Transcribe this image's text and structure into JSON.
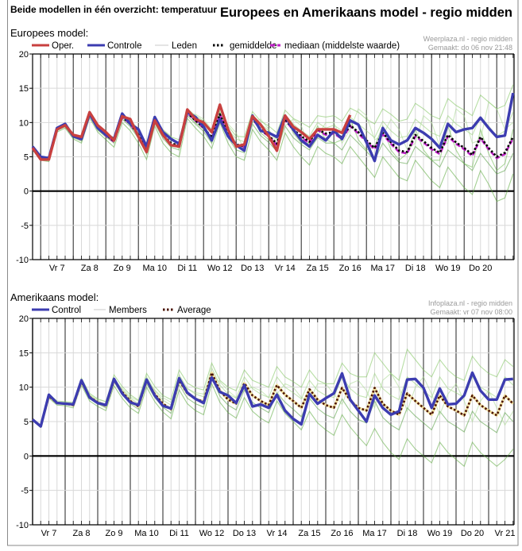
{
  "header": {
    "left_title": "Beide modellen in één overzicht: temperatuur",
    "right_title": "Europees en Amerikaans model - regio midden"
  },
  "chart_data": [
    {
      "type": "line",
      "label": "Europees model:",
      "credit_1": "Weerplaza.nl - regio midden",
      "credit_2": "Gemaakt: do 06 nov 21:48",
      "x_start": "do 6 nov 18:00",
      "step_hours": 6,
      "xtick_labels": [
        "Vr 7",
        "Za 8",
        "Zo 9",
        "Ma 10",
        "Di 11",
        "Wo 12",
        "Do 13",
        "Vr 14",
        "Za 15",
        "Zo 16",
        "Ma 17",
        "Di 18",
        "Wo 19",
        "Do 20"
      ],
      "ylim": [
        -10,
        20
      ],
      "yticks": [
        20,
        15,
        10,
        5,
        0,
        -5,
        -10
      ],
      "grid": true,
      "legend_placement": "top-left",
      "legend": [
        {
          "name": "Oper.",
          "color": "#c8403f",
          "style": "solid"
        },
        {
          "name": "Controle",
          "color": "#3c3cb0",
          "style": "solid"
        },
        {
          "name": "Leden",
          "color": "#b8d8b0",
          "style": "thin"
        },
        {
          "name": "gemiddelde",
          "color": "#000000",
          "style": "dotted"
        },
        {
          "name": "mediaan (middelste waarde)",
          "color": "#c020c8",
          "style": "dashed"
        }
      ],
      "members": [
        [
          6.5,
          5.0,
          5.0,
          9.3,
          9.8,
          8.3,
          8.0,
          11.6,
          9.6,
          8.5,
          7.8,
          11.3,
          10.2,
          8.8,
          6.8,
          10.8,
          8.9,
          7.9,
          7.5,
          12.0,
          11.0,
          10.2,
          8.9,
          12.0,
          9.5,
          8.0,
          7.9,
          11.6,
          10.2,
          9.5,
          8.5,
          11.8,
          10.6,
          10.0,
          9.3,
          11.0,
          10.8,
          11.0,
          10.2,
          12.1,
          11.5,
          10.5,
          9.8,
          12.0,
          11.2,
          10.2,
          10.5,
          12.8,
          12.0,
          11.0,
          10.5,
          13.5,
          12.5,
          11.8,
          11.0,
          14.0,
          13.0,
          12.0,
          12.5,
          15.5
        ],
        [
          6.0,
          4.5,
          4.3,
          8.6,
          9.2,
          7.6,
          7.0,
          10.7,
          8.6,
          7.5,
          6.4,
          10.0,
          8.8,
          7.0,
          4.6,
          9.5,
          7.0,
          5.6,
          5.0,
          10.6,
          9.2,
          8.0,
          6.2,
          10.0,
          7.0,
          5.0,
          4.5,
          9.0,
          7.2,
          6.0,
          4.5,
          8.5,
          6.5,
          5.0,
          3.8,
          6.5,
          5.5,
          5.0,
          4.0,
          6.5,
          5.0,
          3.5,
          2.0,
          5.0,
          3.5,
          2.0,
          1.5,
          4.5,
          3.0,
          1.5,
          0.5,
          3.5,
          2.0,
          0.5,
          -0.5,
          3.0,
          1.0,
          -1.5,
          -1.0,
          2.5
        ],
        [
          6.4,
          4.9,
          4.8,
          9.1,
          9.7,
          8.2,
          7.8,
          11.4,
          9.4,
          8.4,
          7.5,
          11.0,
          10.0,
          8.5,
          6.4,
          10.6,
          8.6,
          7.4,
          7.0,
          11.8,
          10.7,
          9.8,
          8.4,
          11.6,
          9.0,
          7.6,
          7.2,
          11.2,
          9.8,
          8.8,
          7.5,
          11.2,
          9.8,
          8.8,
          8.0,
          10.0,
          9.2,
          9.6,
          8.8,
          10.8,
          9.8,
          8.8,
          7.8,
          10.2,
          8.8,
          7.8,
          8.0,
          10.5,
          9.5,
          8.5,
          8.0,
          11.0,
          9.8,
          9.0,
          8.2,
          10.8,
          9.5,
          8.0,
          8.8,
          11.5
        ],
        [
          6.1,
          4.6,
          4.5,
          8.8,
          9.4,
          7.8,
          7.3,
          11.0,
          8.9,
          7.9,
          7.0,
          10.5,
          9.4,
          7.7,
          5.4,
          9.9,
          7.7,
          6.4,
          6.0,
          11.0,
          9.8,
          8.7,
          7.0,
          10.6,
          7.8,
          6.0,
          5.6,
          9.8,
          8.1,
          7.1,
          5.8,
          9.5,
          7.8,
          6.8,
          6.0,
          7.8,
          7.0,
          7.0,
          6.0,
          8.2,
          7.0,
          5.8,
          4.5,
          7.0,
          5.5,
          4.2,
          4.0,
          6.5,
          5.5,
          4.5,
          3.5,
          6.0,
          5.0,
          4.0,
          3.0,
          5.5,
          4.0,
          2.5,
          3.0,
          5.5
        ],
        [
          6.3,
          4.8,
          4.8,
          9.0,
          9.5,
          8.1,
          7.7,
          11.3,
          9.5,
          8.5,
          7.5,
          10.6,
          10.4,
          9.0,
          6.9,
          10.0,
          9.0,
          8.0,
          6.0,
          11.0,
          11.2,
          10.5,
          9.0,
          10.5,
          9.8,
          8.5,
          6.0,
          10.0,
          10.5,
          9.0,
          7.0,
          9.5,
          10.5,
          9.5,
          6.5,
          8.0,
          10.0,
          10.0,
          7.0,
          9.0,
          12.0,
          11.0,
          7.5,
          8.0,
          10.5,
          9.0,
          6.0,
          7.0,
          11.0,
          10.0,
          6.5,
          7.0,
          12.0,
          11.0,
          7.0,
          7.5,
          13.0,
          12.0,
          9.0,
          10.0
        ],
        [
          6.2,
          4.7,
          4.6,
          9.0,
          9.6,
          8.0,
          7.5,
          11.1,
          9.0,
          8.0,
          7.1,
          10.9,
          9.6,
          8.0,
          5.8,
          10.5,
          8.0,
          6.7,
          6.5,
          11.5,
          10.0,
          9.0,
          7.5,
          11.5,
          8.0,
          6.5,
          6.8,
          11.0,
          8.5,
          7.5,
          6.5,
          11.0,
          8.5,
          7.0,
          7.0,
          9.5,
          7.5,
          7.0,
          7.5,
          10.5,
          7.5,
          6.0,
          6.5,
          9.5,
          6.0,
          4.5,
          5.5,
          9.0,
          6.0,
          4.5,
          4.5,
          9.5,
          6.0,
          4.0,
          3.5,
          9.0,
          5.5,
          3.0,
          4.0,
          9.0
        ]
      ],
      "series": [
        {
          "name": "mediaan (middelste waarde)",
          "color": "#c020c8",
          "style": "dashed",
          "values": [
            6.2,
            4.7,
            4.6,
            9.0,
            9.6,
            8.0,
            7.5,
            11.2,
            9.2,
            8.1,
            7.2,
            10.8,
            9.8,
            8.1,
            5.9,
            10.3,
            8.1,
            6.9,
            6.5,
            11.4,
            10.3,
            9.2,
            7.7,
            11.2,
            8.3,
            6.7,
            6.4,
            10.6,
            8.9,
            8.0,
            6.7,
            10.4,
            8.9,
            7.8,
            7.0,
            8.9,
            8.2,
            8.4,
            7.6,
            9.5,
            8.4,
            7.2,
            6.1,
            8.3,
            6.9,
            5.7,
            5.5,
            8.0,
            7.1,
            6.1,
            5.4,
            8.0,
            6.9,
            6.1,
            5.1,
            7.7,
            6.1,
            4.8,
            5.4,
            7.7
          ]
        },
        {
          "name": "gemiddelde",
          "color": "#000000",
          "style": "dotted",
          "values": [
            6.3,
            4.8,
            4.7,
            9.0,
            9.6,
            8.0,
            7.6,
            11.2,
            9.2,
            8.2,
            7.3,
            10.8,
            9.8,
            8.2,
            6.0,
            10.3,
            8.2,
            7.0,
            6.6,
            11.4,
            10.3,
            9.3,
            7.8,
            11.2,
            8.4,
            6.8,
            6.5,
            10.6,
            9.0,
            8.1,
            6.9,
            10.5,
            9.0,
            8.0,
            7.2,
            9.0,
            8.4,
            8.6,
            7.8,
            9.6,
            8.6,
            7.4,
            6.3,
            8.5,
            7.1,
            5.9,
            5.7,
            8.2,
            7.3,
            6.3,
            5.6,
            8.2,
            7.1,
            6.3,
            5.3,
            7.9,
            6.3,
            5.0,
            5.6,
            7.9
          ]
        },
        {
          "name": "Controle",
          "color": "#3c3cb0",
          "style": "solid",
          "values": [
            6.5,
            5.0,
            4.8,
            9.2,
            9.8,
            8.0,
            7.6,
            11.3,
            9.2,
            8.2,
            7.6,
            11.3,
            9.8,
            9.0,
            6.5,
            10.8,
            8.6,
            7.6,
            6.9,
            11.5,
            10.8,
            9.4,
            7.4,
            10.5,
            8.0,
            6.7,
            5.9,
            11.0,
            8.8,
            8.5,
            7.9,
            11.0,
            9.0,
            7.4,
            6.5,
            8.2,
            7.4,
            8.8,
            7.6,
            10.3,
            9.7,
            7.1,
            4.4,
            9.2,
            7.4,
            6.8,
            7.4,
            9.2,
            8.5,
            7.6,
            6.3,
            9.8,
            8.6,
            9.0,
            9.2,
            10.7,
            9.2,
            7.9,
            8.1,
            14.3
          ]
        },
        {
          "name": "Oper.",
          "color": "#c8403f",
          "style": "solid",
          "values": [
            6.3,
            4.6,
            4.6,
            9.0,
            9.6,
            8.2,
            7.9,
            11.5,
            9.6,
            8.6,
            7.4,
            10.9,
            10.5,
            7.9,
            5.7,
            10.3,
            8.2,
            6.7,
            6.5,
            11.9,
            10.5,
            10.0,
            8.6,
            12.6,
            9.0,
            6.5,
            6.8,
            10.9,
            9.7,
            8.0,
            5.9,
            11.0,
            9.4,
            8.6,
            7.6,
            9.0,
            9.0,
            9.0,
            8.5,
            11.1
          ]
        }
      ]
    },
    {
      "type": "line",
      "label": "Amerikaans model:",
      "credit_1": "Infoplaza.nl - regio midden",
      "credit_2": "Gemaakt: vr 07 nov 08:00",
      "x_start": "vr 7 nov 00:00",
      "step_hours": 6,
      "xtick_labels": [
        "Vr 7",
        "Za 8",
        "Zo 9",
        "Ma 10",
        "Di 11",
        "Wo 12",
        "Do 13",
        "Vr 14",
        "Za 15",
        "Zo 16",
        "Ma 17",
        "Di 18",
        "Wo 19",
        "Do 20",
        "Vr 21"
      ],
      "ylim": [
        -10,
        20
      ],
      "yticks": [
        20,
        15,
        10,
        5,
        0,
        -5,
        -10
      ],
      "grid": true,
      "legend_placement": "top-left",
      "legend": [
        {
          "name": "Control",
          "color": "#3c3cb0",
          "style": "solid"
        },
        {
          "name": "Members",
          "color": "#b8d8b0",
          "style": "thin"
        },
        {
          "name": "Average",
          "color": "#4a1200",
          "style": "dotted"
        }
      ],
      "members": [
        [
          5.3,
          4.3,
          9.0,
          8.0,
          7.9,
          7.8,
          11.3,
          9.1,
          8.3,
          7.9,
          11.8,
          10.1,
          8.9,
          8.1,
          12.0,
          10.1,
          8.8,
          8.2,
          12.5,
          10.6,
          9.9,
          9.6,
          13.5,
          11.0,
          10.0,
          9.5,
          12.5,
          11.0,
          10.5,
          10.0,
          13.0,
          11.5,
          10.8,
          10.0,
          12.5,
          11.0,
          10.5,
          10.5,
          13.5,
          12.0,
          11.5,
          11.5,
          15.0,
          13.5,
          12.0,
          11.0,
          15.5,
          14.0,
          12.5,
          11.5,
          14.0,
          12.5,
          11.5,
          11.0,
          14.5,
          13.0,
          12.0,
          11.5,
          14.0,
          13.0
        ],
        [
          5.3,
          4.3,
          8.4,
          7.4,
          7.3,
          7.0,
          10.3,
          8.0,
          7.2,
          6.6,
          10.2,
          8.4,
          7.0,
          6.2,
          10.0,
          7.9,
          6.4,
          5.4,
          9.6,
          7.6,
          6.6,
          6.0,
          10.5,
          7.8,
          6.3,
          5.5,
          8.5,
          6.5,
          5.5,
          4.8,
          8.0,
          6.2,
          5.0,
          3.8,
          6.5,
          4.8,
          3.8,
          3.0,
          6.0,
          4.2,
          2.8,
          1.5,
          4.0,
          2.0,
          0.5,
          -0.5,
          2.5,
          1.0,
          0.0,
          -1.0,
          2.0,
          0.5,
          -0.5,
          -1.5,
          2.0,
          0.5,
          -0.5,
          -1.5,
          -0.5,
          1.0
        ],
        [
          5.3,
          4.3,
          8.8,
          7.8,
          7.7,
          7.5,
          11.0,
          8.8,
          8.0,
          7.5,
          11.3,
          9.6,
          8.4,
          7.6,
          11.5,
          9.5,
          8.1,
          7.4,
          11.8,
          9.8,
          9.0,
          8.6,
          12.8,
          10.3,
          9.0,
          8.4,
          11.5,
          9.8,
          9.0,
          8.5,
          11.5,
          10.0,
          9.2,
          8.3,
          11.0,
          9.5,
          8.8,
          8.5,
          11.5,
          9.8,
          8.8,
          8.5,
          12.0,
          9.8,
          8.8,
          8.2,
          11.5,
          10.5,
          9.5,
          8.5,
          11.5,
          9.8,
          9.2,
          8.5,
          11.5,
          10.0,
          9.3,
          8.5,
          11.5,
          10.3
        ],
        [
          5.3,
          4.3,
          8.6,
          7.6,
          7.5,
          7.3,
          10.6,
          8.4,
          7.6,
          7.0,
          10.7,
          9.0,
          7.6,
          6.8,
          10.5,
          8.5,
          7.1,
          6.2,
          10.4,
          8.4,
          7.6,
          7.1,
          11.4,
          8.7,
          7.4,
          6.7,
          9.6,
          7.8,
          7.0,
          6.3,
          9.2,
          7.8,
          6.8,
          5.7,
          8.4,
          6.9,
          6.0,
          5.5,
          8.3,
          6.5,
          5.3,
          4.8,
          8.0,
          5.6,
          4.5,
          3.8,
          7.0,
          5.8,
          4.8,
          3.8,
          6.5,
          5.0,
          4.3,
          3.5,
          6.5,
          5.0,
          4.2,
          3.4,
          6.3,
          5.0
        ],
        [
          5.3,
          4.3,
          8.7,
          7.8,
          7.8,
          7.6,
          10.9,
          8.9,
          8.2,
          7.9,
          11.1,
          9.8,
          8.6,
          8.0,
          10.8,
          9.6,
          8.5,
          7.8,
          10.6,
          9.8,
          9.2,
          9.0,
          11.5,
          10.8,
          9.5,
          8.5,
          9.5,
          10.0,
          9.5,
          8.5,
          9.0,
          10.5,
          10.0,
          8.5,
          8.0,
          10.5,
          10.5,
          9.0,
          7.5,
          10.5,
          11.0,
          9.5,
          7.0,
          11.0,
          12.0,
          10.0,
          6.5,
          10.0,
          11.5,
          9.0,
          6.0,
          9.0,
          10.5,
          8.0,
          5.0,
          8.0,
          9.5,
          7.0,
          4.5,
          6.5
        ]
      ],
      "series": [
        {
          "name": "Average",
          "color": "#4a1200",
          "style": "dotted",
          "values": [
            5.3,
            4.3,
            8.7,
            7.7,
            7.6,
            7.4,
            10.8,
            8.6,
            7.8,
            7.3,
            11.0,
            9.3,
            8.0,
            7.2,
            11.0,
            9.0,
            7.6,
            6.8,
            11.0,
            9.1,
            8.3,
            7.9,
            12.1,
            9.5,
            8.2,
            7.6,
            10.6,
            8.8,
            8.0,
            7.4,
            10.3,
            8.9,
            8.0,
            7.0,
            9.7,
            8.2,
            7.4,
            7.0,
            9.9,
            8.1,
            7.0,
            6.6,
            9.9,
            7.6,
            6.6,
            6.0,
            9.1,
            8.0,
            7.0,
            6.0,
            8.8,
            7.2,
            6.6,
            5.9,
            8.8,
            7.4,
            6.6,
            5.9,
            8.8,
            7.6
          ]
        },
        {
          "name": "Control",
          "color": "#3c3cb0",
          "style": "solid",
          "values": [
            5.3,
            4.3,
            8.9,
            7.7,
            7.6,
            7.5,
            11.0,
            8.5,
            7.7,
            7.4,
            11.2,
            9.1,
            7.8,
            7.4,
            11.1,
            8.8,
            7.3,
            6.9,
            11.3,
            9.2,
            8.3,
            7.7,
            11.4,
            9.3,
            8.8,
            7.7,
            10.3,
            7.2,
            7.5,
            7.0,
            8.9,
            6.6,
            5.4,
            4.6,
            9.0,
            7.6,
            8.4,
            9.1,
            12.0,
            8.2,
            6.6,
            5.0,
            8.8,
            7.0,
            6.0,
            6.5,
            11.1,
            11.2,
            9.9,
            7.0,
            9.8,
            7.5,
            7.6,
            8.8,
            12.1,
            9.5,
            8.2,
            8.2,
            11.1,
            11.2
          ]
        }
      ]
    }
  ]
}
